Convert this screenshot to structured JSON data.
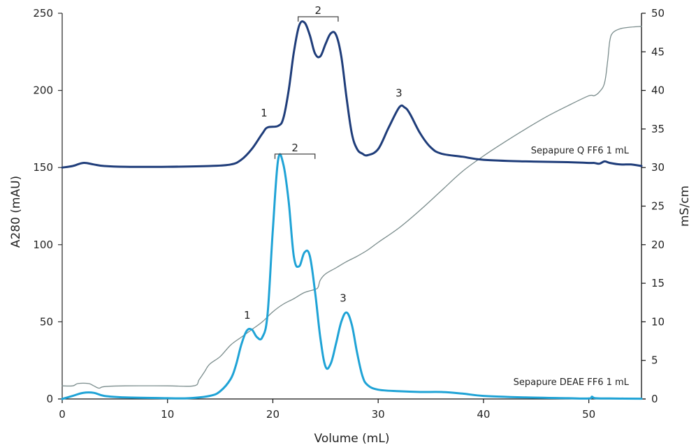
{
  "chart_data": {
    "type": "line",
    "title": "",
    "xlabel": "Volume (mL)",
    "ylabel": "A280 (mAU)",
    "y2label": "mS/cm",
    "xlim": [
      0,
      55
    ],
    "ylim": [
      0,
      250
    ],
    "y2lim": [
      0,
      50
    ],
    "grid": false,
    "x_ticks": [
      "0",
      "10",
      "20",
      "30",
      "40",
      "50"
    ],
    "y_ticks": [
      "0",
      "50",
      "100",
      "150",
      "200",
      "250"
    ],
    "y2_ticks": [
      "0",
      "5",
      "10",
      "15",
      "20",
      "25",
      "30",
      "35",
      "40",
      "45",
      "50"
    ],
    "series": [
      {
        "name": "Sepapure Q FF6 1 mL",
        "axis": "left",
        "color": "#1f3d7a",
        "x": [
          0,
          1,
          2,
          3,
          4,
          6,
          10,
          14,
          16,
          17,
          18,
          19,
          19.5,
          20.5,
          21,
          21.5,
          22,
          22.5,
          23,
          23.5,
          24,
          24.5,
          25,
          25.5,
          26,
          26.5,
          27,
          27.5,
          28,
          28.5,
          29,
          30,
          31,
          32,
          32.5,
          33,
          34,
          35,
          36,
          38,
          40,
          44,
          48,
          50,
          50.5,
          51,
          51.5,
          52,
          53,
          54,
          55
        ],
        "values": [
          150,
          151,
          153,
          152,
          151,
          150.5,
          150.5,
          151,
          152,
          155,
          162,
          172,
          176,
          177,
          182,
          200,
          225,
          242,
          244,
          236,
          224,
          222,
          230,
          237,
          236,
          222,
          195,
          172,
          162,
          159,
          158,
          162,
          176,
          189,
          189,
          185,
          172,
          163,
          159,
          157,
          155,
          154,
          153.5,
          153,
          153,
          152.5,
          154,
          153,
          152,
          152,
          151
        ]
      },
      {
        "name": "Sepapure DEAE FF6 1 mL",
        "axis": "left",
        "color": "#1fa3d6",
        "x": [
          0,
          1,
          2,
          3,
          4,
          6,
          10,
          12,
          14,
          15,
          16,
          16.5,
          17,
          17.5,
          18,
          18.5,
          19,
          19.5,
          20,
          20.5,
          21,
          21.5,
          22,
          22.5,
          23,
          23.5,
          24,
          24.5,
          25,
          25.5,
          26,
          26.5,
          27,
          27.5,
          28,
          28.5,
          29,
          30,
          32,
          34,
          36,
          38,
          40,
          44,
          48,
          50,
          50.3,
          50.6,
          52,
          55
        ],
        "values": [
          0,
          2,
          4,
          4,
          2,
          1,
          0.5,
          0.5,
          2,
          5,
          13,
          22,
          35,
          44,
          45,
          40,
          40,
          55,
          110,
          155,
          152,
          128,
          92,
          86,
          95,
          93,
          70,
          40,
          21,
          23,
          36,
          50,
          56,
          48,
          30,
          15,
          9,
          6,
          5,
          4.5,
          4.5,
          3.5,
          2,
          1,
          0.5,
          0.3,
          1.5,
          0.5,
          0.3,
          0.2
        ]
      },
      {
        "name": "Conductivity",
        "axis": "right",
        "color": "#7a8c8c",
        "x": [
          0,
          1,
          1.5,
          2.5,
          3,
          3.5,
          4,
          6,
          10,
          12.5,
          13,
          13.5,
          14,
          15,
          16,
          17,
          18,
          19,
          20,
          21,
          22,
          23,
          24,
          24.3,
          24.5,
          25,
          26,
          27,
          28,
          29,
          30,
          32,
          34,
          36,
          38,
          40,
          42,
          44,
          46,
          48,
          50,
          50.5,
          51,
          51.5,
          51.8,
          52,
          52.3,
          53,
          54,
          55
        ],
        "values": [
          1.7,
          1.7,
          2,
          2,
          1.7,
          1.4,
          1.6,
          1.7,
          1.7,
          1.7,
          2.5,
          3.5,
          4.5,
          5.5,
          7,
          8,
          9,
          10,
          11.3,
          12.3,
          13,
          13.8,
          14.2,
          14.5,
          15.4,
          16.2,
          17,
          17.8,
          18.5,
          19.3,
          20.3,
          22.2,
          24.5,
          27,
          29.5,
          31.5,
          33.3,
          35,
          36.6,
          38,
          39.3,
          39.3,
          39.8,
          41,
          44,
          46.5,
          47.5,
          48,
          48.2,
          48.3
        ]
      }
    ],
    "annotations": [
      {
        "text": "1",
        "series": "Sepapure Q FF6 1 mL",
        "x": 19.5,
        "y": 183
      },
      {
        "text": "2",
        "series": "Sepapure Q FF6 1 mL",
        "x": 24.2,
        "y": 250,
        "bracket": [
          22.4,
          26.2
        ]
      },
      {
        "text": "3",
        "series": "Sepapure Q FF6 1 mL",
        "x": 32.3,
        "y": 196
      },
      {
        "text": "1",
        "series": "Sepapure DEAE FF6 1 mL",
        "x": 17.9,
        "y": 52
      },
      {
        "text": "2",
        "series": "Sepapure DEAE FF6 1 mL",
        "x": 21.8,
        "y": 161,
        "bracket": [
          20.2,
          24.0
        ]
      },
      {
        "text": "3",
        "series": "Sepapure DEAE FF6 1 mL",
        "x": 27.0,
        "y": 63
      }
    ],
    "series_labels": [
      {
        "text": "Sepapure Q FF6 1 mL",
        "x": 54,
        "y": 160
      },
      {
        "text": "Sepapure DEAE FF6 1 mL",
        "x": 54,
        "y": 10
      }
    ],
    "legend": "inline labels"
  }
}
